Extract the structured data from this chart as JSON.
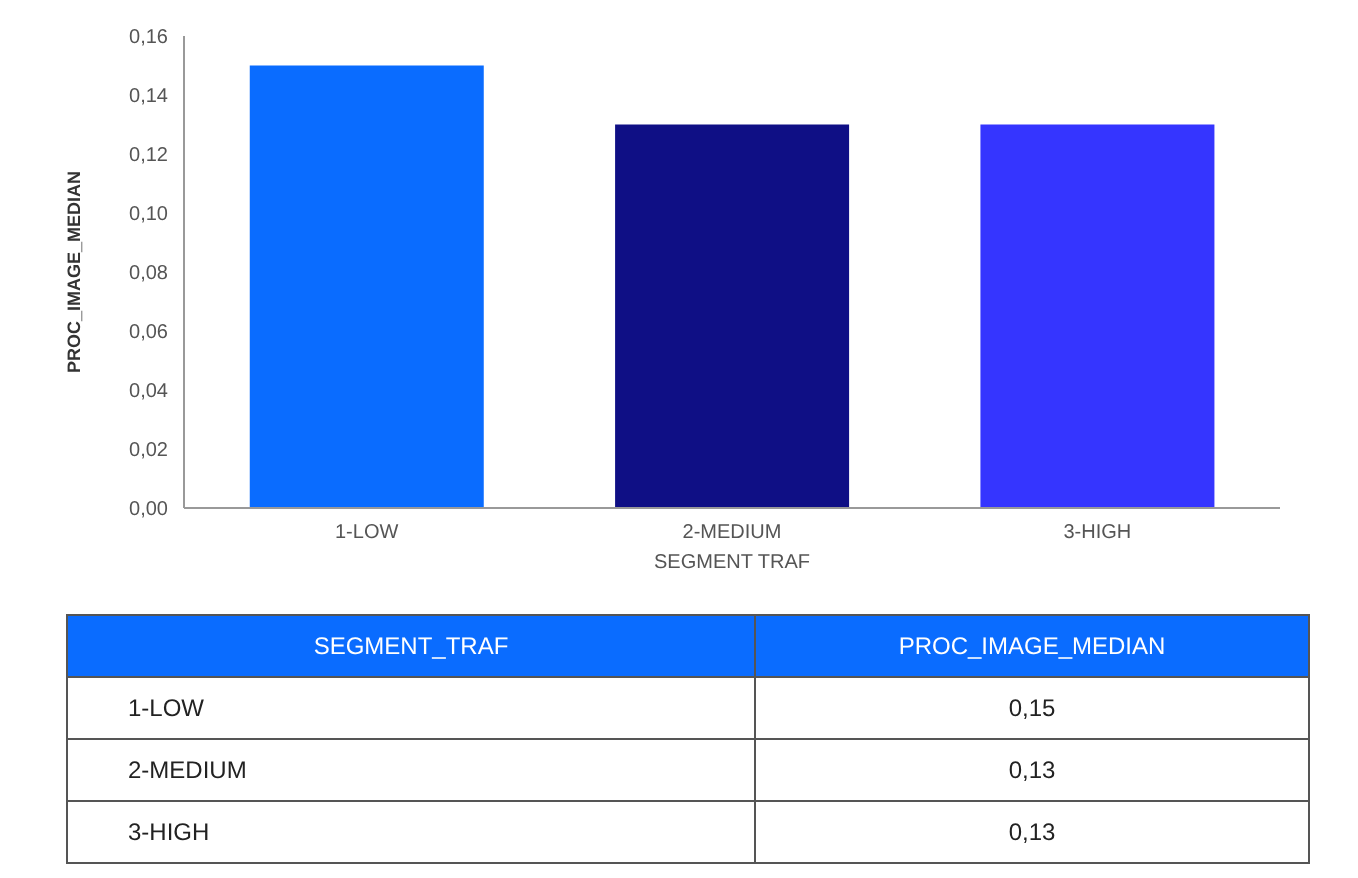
{
  "chart_data": {
    "type": "bar",
    "categories": [
      "1-LOW",
      "2-MEDIUM",
      "3-HIGH"
    ],
    "values": [
      0.15,
      0.13,
      0.13
    ],
    "colors": [
      "#0a6cff",
      "#0f0f85",
      "#3535ff"
    ],
    "xlabel": "SEGMENT TRAF",
    "ylabel": "PROC_IMAGE_MEDIAN",
    "ylim": [
      0,
      0.16
    ],
    "yticks": [
      {
        "value": 0,
        "label": "0,00"
      },
      {
        "value": 0.02,
        "label": "0,02"
      },
      {
        "value": 0.04,
        "label": "0,04"
      },
      {
        "value": 0.06,
        "label": "0,06"
      },
      {
        "value": 0.08,
        "label": "0,08"
      },
      {
        "value": 0.1,
        "label": "0,10"
      },
      {
        "value": 0.12,
        "label": "0,12"
      },
      {
        "value": 0.14,
        "label": "0,14"
      },
      {
        "value": 0.16,
        "label": "0,16"
      }
    ],
    "annotations": [
      "SEGMENT_TRAF",
      "PROC_IMAGE_MEDIAN",
      "0,15",
      "0,13",
      "0,13"
    ],
    "grid": false
  }
}
